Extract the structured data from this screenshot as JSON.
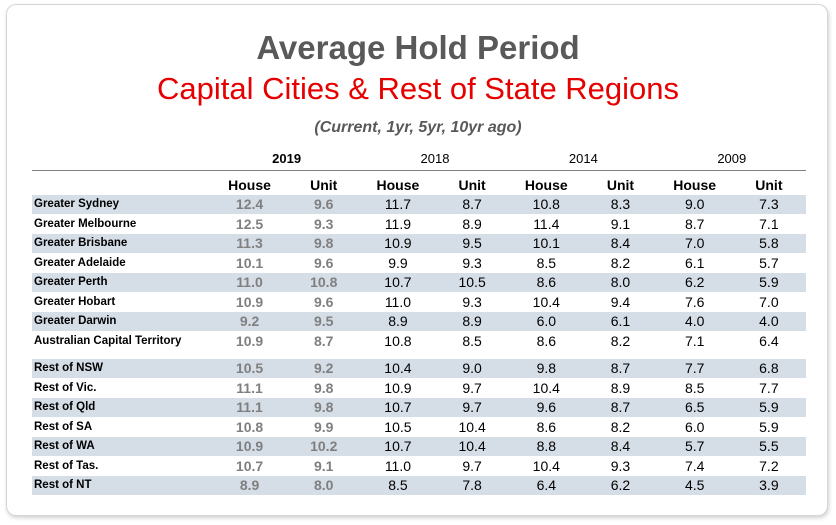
{
  "header": {
    "title": "Average Hold Period",
    "subtitle": "Capital Cities & Rest of State Regions",
    "note": "(Current, 1yr,  5yr, 10yr ago)"
  },
  "years": [
    "2019",
    "2018",
    "2014",
    "2009"
  ],
  "columns": [
    "House",
    "Unit",
    "House",
    "Unit",
    "House",
    "Unit",
    "House",
    "Unit"
  ],
  "capitals": [
    {
      "name": "Greater Sydney",
      "values": [
        "12.4",
        "9.6",
        "11.7",
        "8.7",
        "10.8",
        "8.3",
        "9.0",
        "7.3"
      ]
    },
    {
      "name": "Greater Melbourne",
      "values": [
        "12.5",
        "9.3",
        "11.9",
        "8.9",
        "11.4",
        "9.1",
        "8.7",
        "7.1"
      ]
    },
    {
      "name": "Greater Brisbane",
      "values": [
        "11.3",
        "9.8",
        "10.9",
        "9.5",
        "10.1",
        "8.4",
        "7.0",
        "5.8"
      ]
    },
    {
      "name": "Greater Adelaide",
      "values": [
        "10.1",
        "9.6",
        "9.9",
        "9.3",
        "8.5",
        "8.2",
        "6.1",
        "5.7"
      ]
    },
    {
      "name": "Greater Perth",
      "values": [
        "11.0",
        "10.8",
        "10.7",
        "10.5",
        "8.6",
        "8.0",
        "6.2",
        "5.9"
      ]
    },
    {
      "name": "Greater Hobart",
      "values": [
        "10.9",
        "9.6",
        "11.0",
        "9.3",
        "10.4",
        "9.4",
        "7.6",
        "7.0"
      ]
    },
    {
      "name": "Greater Darwin",
      "values": [
        "9.2",
        "9.5",
        "8.9",
        "8.9",
        "6.0",
        "6.1",
        "4.0",
        "4.0"
      ]
    },
    {
      "name": "Australian Capital Territory",
      "values": [
        "10.9",
        "8.7",
        "10.8",
        "8.5",
        "8.6",
        "8.2",
        "7.1",
        "6.4"
      ]
    }
  ],
  "regions": [
    {
      "name": "Rest of NSW",
      "values": [
        "10.5",
        "9.2",
        "10.4",
        "9.0",
        "9.8",
        "8.7",
        "7.7",
        "6.8"
      ]
    },
    {
      "name": "Rest of Vic.",
      "values": [
        "11.1",
        "9.8",
        "10.9",
        "9.7",
        "10.4",
        "8.9",
        "8.5",
        "7.7"
      ]
    },
    {
      "name": "Rest of Qld",
      "values": [
        "11.1",
        "9.8",
        "10.7",
        "9.7",
        "9.6",
        "8.7",
        "6.5",
        "5.9"
      ]
    },
    {
      "name": "Rest of SA",
      "values": [
        "10.8",
        "9.9",
        "10.5",
        "10.4",
        "8.6",
        "8.2",
        "6.0",
        "5.9"
      ]
    },
    {
      "name": "Rest of WA",
      "values": [
        "10.9",
        "10.2",
        "10.7",
        "10.4",
        "8.8",
        "8.4",
        "5.7",
        "5.5"
      ]
    },
    {
      "name": "Rest of Tas.",
      "values": [
        "10.7",
        "9.1",
        "11.0",
        "9.7",
        "10.4",
        "9.3",
        "7.4",
        "7.2"
      ]
    },
    {
      "name": "Rest of NT",
      "values": [
        "8.9",
        "8.0",
        "8.5",
        "7.8",
        "6.4",
        "6.2",
        "4.5",
        "3.9"
      ]
    }
  ]
}
